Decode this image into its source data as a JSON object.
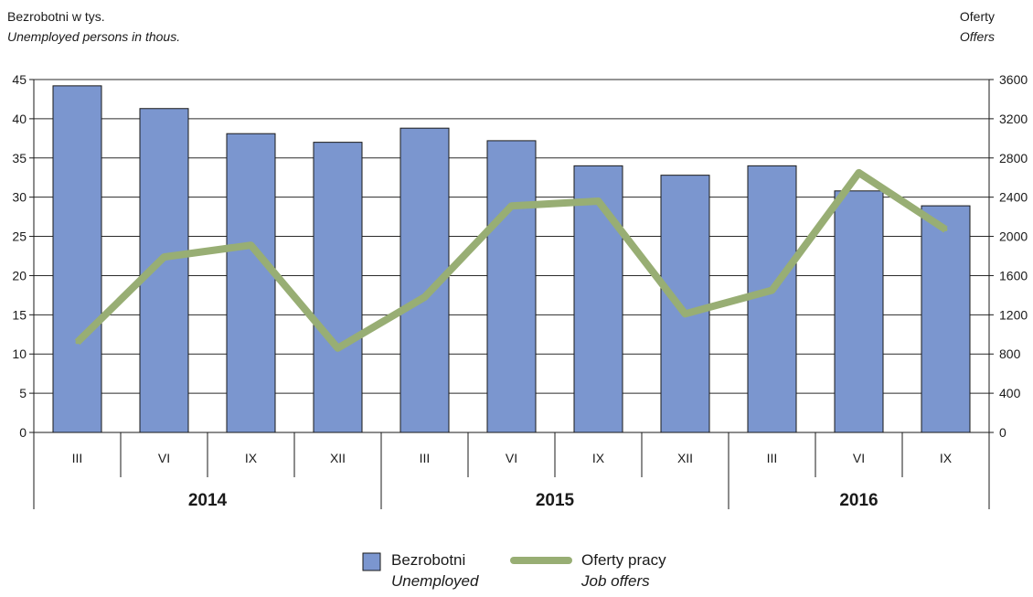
{
  "chart_data": {
    "type": "bar+line",
    "left_axis_title": "Bezrobotni w tys.",
    "left_axis_title_en": "Unemployed persons in thous.",
    "right_axis_title": "Oferty",
    "right_axis_title_en": "Offers",
    "y_left": {
      "min": 0,
      "max": 45,
      "step": 5,
      "ticks": [
        "0",
        "5",
        "10",
        "15",
        "20",
        "25",
        "30",
        "35",
        "40",
        "45"
      ]
    },
    "y_right": {
      "min": 0,
      "max": 3600,
      "step": 400,
      "ticks": [
        "0",
        "400",
        "800",
        "1200",
        "1600",
        "2000",
        "2400",
        "2800",
        "3200",
        "3600"
      ]
    },
    "categories": [
      "III",
      "VI",
      "IX",
      "XII",
      "III",
      "VI",
      "IX",
      "XII",
      "III",
      "VI",
      "IX"
    ],
    "years": [
      {
        "label": "2014",
        "count": 4
      },
      {
        "label": "2015",
        "count": 4
      },
      {
        "label": "2016",
        "count": 3
      }
    ],
    "series": [
      {
        "name": "Bezrobotni",
        "name_en": "Unemployed",
        "type": "bar",
        "axis": "left",
        "color": "#7b96cf",
        "values": [
          44.2,
          41.3,
          38.1,
          37.0,
          38.8,
          37.2,
          34.0,
          32.8,
          34.0,
          30.8,
          28.9
        ]
      },
      {
        "name": "Oferty pracy",
        "name_en": "Job offers",
        "type": "line",
        "axis": "right",
        "color": "#98ae74",
        "values": [
          920,
          1790,
          1910,
          860,
          1380,
          2310,
          2360,
          1210,
          1450,
          2650,
          2070
        ]
      }
    ],
    "grid": true,
    "legend_position": "bottom-center"
  }
}
